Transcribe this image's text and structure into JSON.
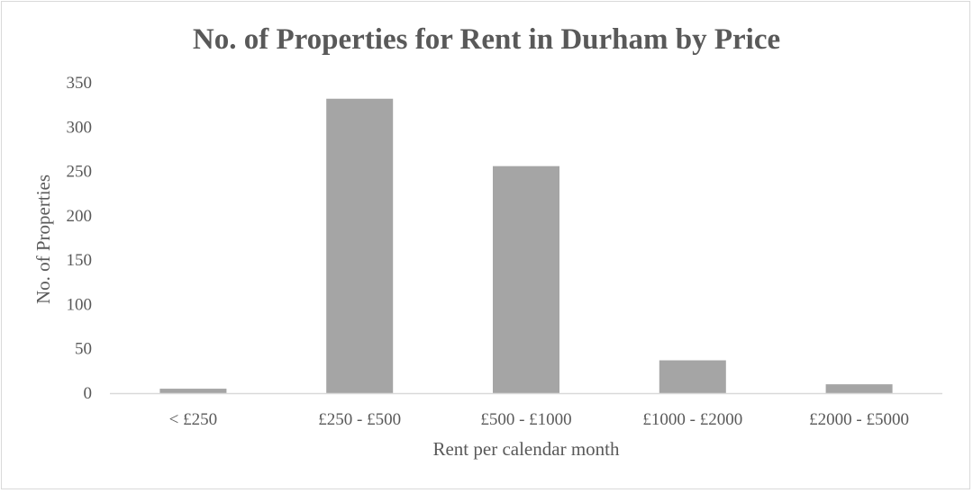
{
  "chart_data": {
    "type": "bar",
    "title": "No. of Properties for Rent in Durham by Price",
    "xlabel": "Rent per calendar month",
    "ylabel": "No. of Properties",
    "categories": [
      "< £250",
      "£250 - £500",
      "£500 - £1000",
      "£1000 - £2000",
      "£2000 - £5000"
    ],
    "values": [
      5,
      332,
      256,
      37,
      10
    ],
    "ylim": [
      0,
      350
    ],
    "yticks": [
      0,
      50,
      100,
      150,
      200,
      250,
      300,
      350
    ],
    "grid": false,
    "legend": "none",
    "colors": {
      "bar": "#a5a5a5",
      "text": "#595959",
      "axis": "#d9d9d9"
    }
  }
}
